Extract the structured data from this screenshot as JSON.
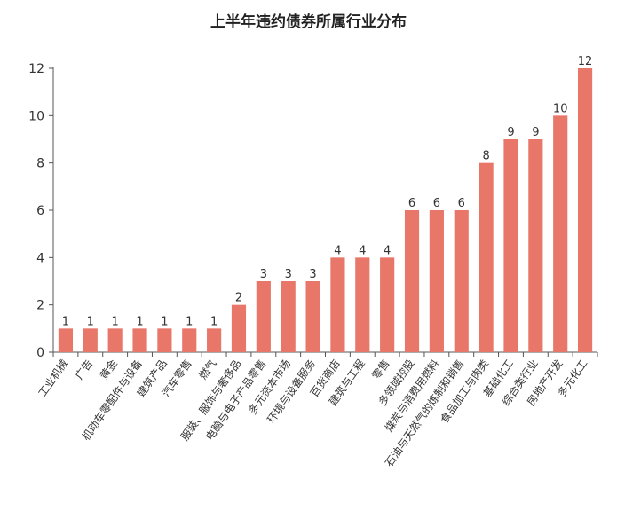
{
  "chart_data": {
    "type": "bar",
    "title": "上半年违约债券所属行业分布",
    "xlabel": "",
    "ylabel": "",
    "ylim": [
      0,
      12
    ],
    "yticks": [
      0,
      2,
      4,
      6,
      8,
      10,
      12
    ],
    "grid": false,
    "bar_color": "#e8776a",
    "categories": [
      "工业机械",
      "广告",
      "黄金",
      "机动车零配件与设备",
      "建筑产品",
      "汽车零售",
      "燃气",
      "服装、服饰与奢侈品",
      "电脑与电子产品零售",
      "多元资本市场",
      "环境与设备服务",
      "百货商店",
      "建筑与工程",
      "零售",
      "多领域控股",
      "煤炭与消费用燃料",
      "石油与天然气的炼制和销售",
      "食品加工与肉类",
      "基础化工",
      "综合类行业",
      "房地产开发",
      "多元化工"
    ],
    "values": [
      1,
      1,
      1,
      1,
      1,
      1,
      1,
      2,
      3,
      3,
      3,
      4,
      4,
      4,
      6,
      6,
      6,
      8,
      9,
      9,
      10,
      12
    ]
  }
}
